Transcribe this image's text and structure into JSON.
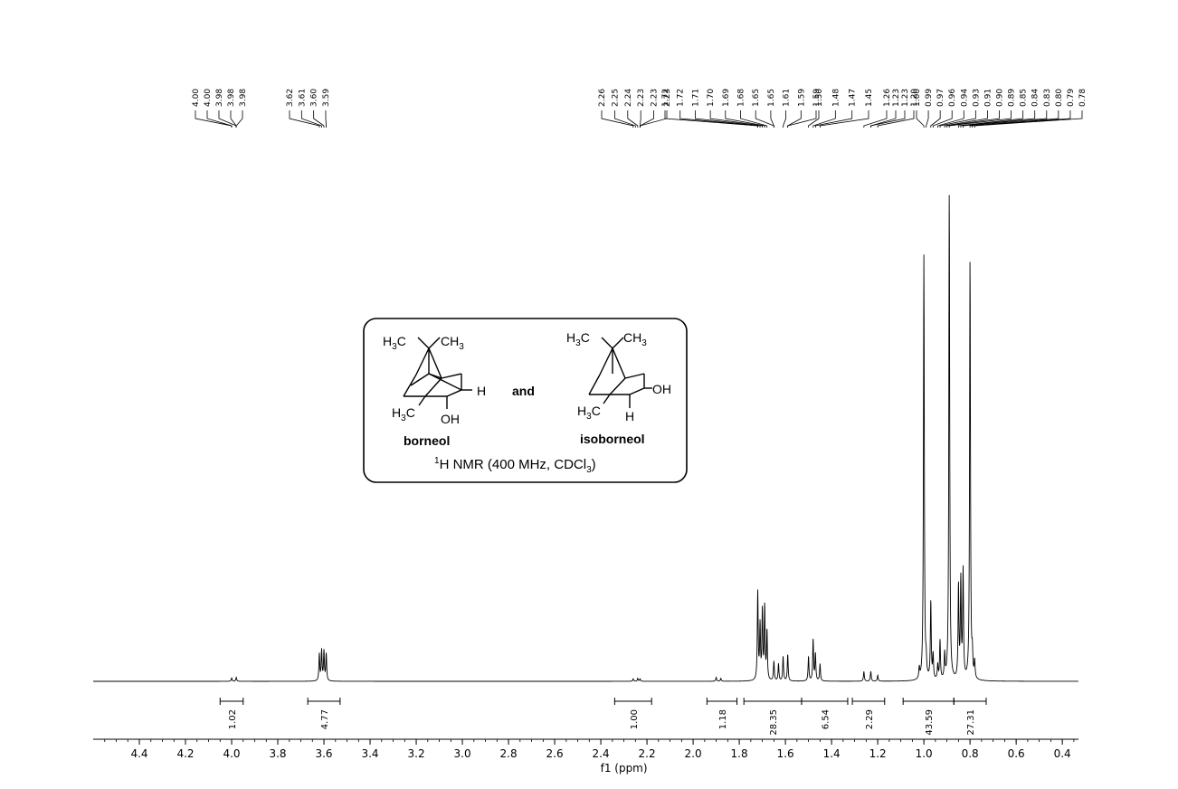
{
  "chart_data": {
    "type": "line",
    "xlabel": "f1 (ppm)",
    "x_reversed": true,
    "xlim": [
      4.6,
      0.33
    ],
    "x_ticks": [
      4.4,
      4.2,
      4.0,
      3.8,
      3.6,
      3.4,
      3.2,
      3.0,
      2.8,
      2.6,
      2.4,
      2.2,
      2.0,
      1.8,
      1.6,
      1.4,
      1.2,
      1.0,
      0.8,
      0.6,
      0.4
    ],
    "x_tick_labels": [
      "4.4",
      "4.2",
      "4.0",
      "3.8",
      "3.6",
      "3.4",
      "3.2",
      "3.0",
      "2.8",
      "2.6",
      "2.4",
      "2.2",
      "2.0",
      "1.8",
      "1.6",
      "1.4",
      "1.2",
      "1.0",
      "0.8",
      "0.6",
      "0.4"
    ],
    "peaks": [
      {
        "ppm": 4.0,
        "h": 0.007
      },
      {
        "ppm": 3.98,
        "h": 0.008
      },
      {
        "ppm": 3.62,
        "h": 0.055
      },
      {
        "ppm": 3.61,
        "h": 0.062
      },
      {
        "ppm": 3.6,
        "h": 0.06
      },
      {
        "ppm": 3.59,
        "h": 0.055
      },
      {
        "ppm": 2.26,
        "h": 0.005
      },
      {
        "ppm": 2.24,
        "h": 0.006
      },
      {
        "ppm": 2.23,
        "h": 0.005
      },
      {
        "ppm": 1.9,
        "h": 0.008
      },
      {
        "ppm": 1.88,
        "h": 0.006
      },
      {
        "ppm": 1.72,
        "h": 0.18
      },
      {
        "ppm": 1.71,
        "h": 0.11
      },
      {
        "ppm": 1.7,
        "h": 0.14
      },
      {
        "ppm": 1.69,
        "h": 0.15
      },
      {
        "ppm": 1.68,
        "h": 0.1
      },
      {
        "ppm": 1.65,
        "h": 0.04
      },
      {
        "ppm": 1.63,
        "h": 0.035
      },
      {
        "ppm": 1.61,
        "h": 0.05
      },
      {
        "ppm": 1.59,
        "h": 0.055
      },
      {
        "ppm": 1.5,
        "h": 0.05
      },
      {
        "ppm": 1.48,
        "h": 0.085
      },
      {
        "ppm": 1.47,
        "h": 0.055
      },
      {
        "ppm": 1.45,
        "h": 0.035
      },
      {
        "ppm": 1.26,
        "h": 0.02
      },
      {
        "ppm": 1.23,
        "h": 0.02
      },
      {
        "ppm": 1.2,
        "h": 0.012
      },
      {
        "ppm": 1.02,
        "h": 0.022
      },
      {
        "ppm": 1.0,
        "h": 0.87
      },
      {
        "ppm": 0.99,
        "h": 0.03
      },
      {
        "ppm": 0.97,
        "h": 0.16
      },
      {
        "ppm": 0.96,
        "h": 0.05
      },
      {
        "ppm": 0.94,
        "h": 0.03
      },
      {
        "ppm": 0.93,
        "h": 0.08
      },
      {
        "ppm": 0.91,
        "h": 0.05
      },
      {
        "ppm": 0.89,
        "h": 1.0
      },
      {
        "ppm": 0.85,
        "h": 0.19
      },
      {
        "ppm": 0.84,
        "h": 0.2
      },
      {
        "ppm": 0.83,
        "h": 0.22
      },
      {
        "ppm": 0.8,
        "h": 0.86
      },
      {
        "ppm": 0.79,
        "h": 0.045
      },
      {
        "ppm": 0.78,
        "h": 0.035
      }
    ],
    "peak_label_groups": [
      {
        "labels": [
          "4.00",
          "4.00",
          "3.98",
          "3.98",
          "3.98"
        ]
      },
      {
        "labels": [
          "3.62",
          "3.61",
          "3.60",
          "3.59"
        ]
      },
      {
        "labels": [
          "2.26",
          "2.25",
          "2.24",
          "2.23",
          "2.23",
          "2.23"
        ]
      },
      {
        "labels": [
          "1.72",
          "1.72",
          "1.71",
          "1.70",
          "1.69",
          "1.68",
          "1.65",
          "1.65",
          "1.61",
          "1.59",
          "1.59"
        ]
      },
      {
        "labels": [
          "1.50",
          "1.48",
          "1.47",
          "1.45"
        ]
      },
      {
        "labels": [
          "1.26",
          "1.23",
          "1.23",
          "1.20"
        ]
      },
      {
        "labels": [
          "1.00",
          "0.99",
          "0.97",
          "0.96",
          "0.94",
          "0.93",
          "0.91",
          "0.90",
          "0.89",
          "0.85",
          "0.84",
          "0.83",
          "0.80",
          "0.79",
          "0.78"
        ]
      }
    ],
    "integrals": [
      {
        "from": 4.05,
        "to": 3.95,
        "value": "1.02"
      },
      {
        "from": 3.67,
        "to": 3.53,
        "value": "4.77"
      },
      {
        "from": 2.34,
        "to": 2.18,
        "value": "1.00"
      },
      {
        "from": 1.94,
        "to": 1.81,
        "value": "1.18"
      },
      {
        "from": 1.78,
        "to": 1.53,
        "value": "28.35"
      },
      {
        "from": 1.53,
        "to": 1.33,
        "value": "6.54"
      },
      {
        "from": 1.31,
        "to": 1.17,
        "value": "2.29"
      },
      {
        "from": 1.09,
        "to": 0.87,
        "value": "43.59"
      },
      {
        "from": 0.87,
        "to": 0.73,
        "value": "27.31"
      }
    ]
  },
  "inset": {
    "and_label": "and",
    "borneol": {
      "name": "borneol",
      "h3c_left": "H3C",
      "ch3_right": "CH3",
      "h_sub": "H",
      "h3c_bottom": "H3C",
      "oh_sub": "OH"
    },
    "isoborneol": {
      "name": "isoborneol",
      "h3c_left": "H3C",
      "ch3_right": "CH3",
      "oh_sub": "OH",
      "h3c_bottom": "H3C",
      "h_sub": "H"
    },
    "caption": {
      "sup": "1",
      "main": "H NMR (400 MHz, CDCl",
      "sub": "3",
      "close": ")"
    }
  }
}
